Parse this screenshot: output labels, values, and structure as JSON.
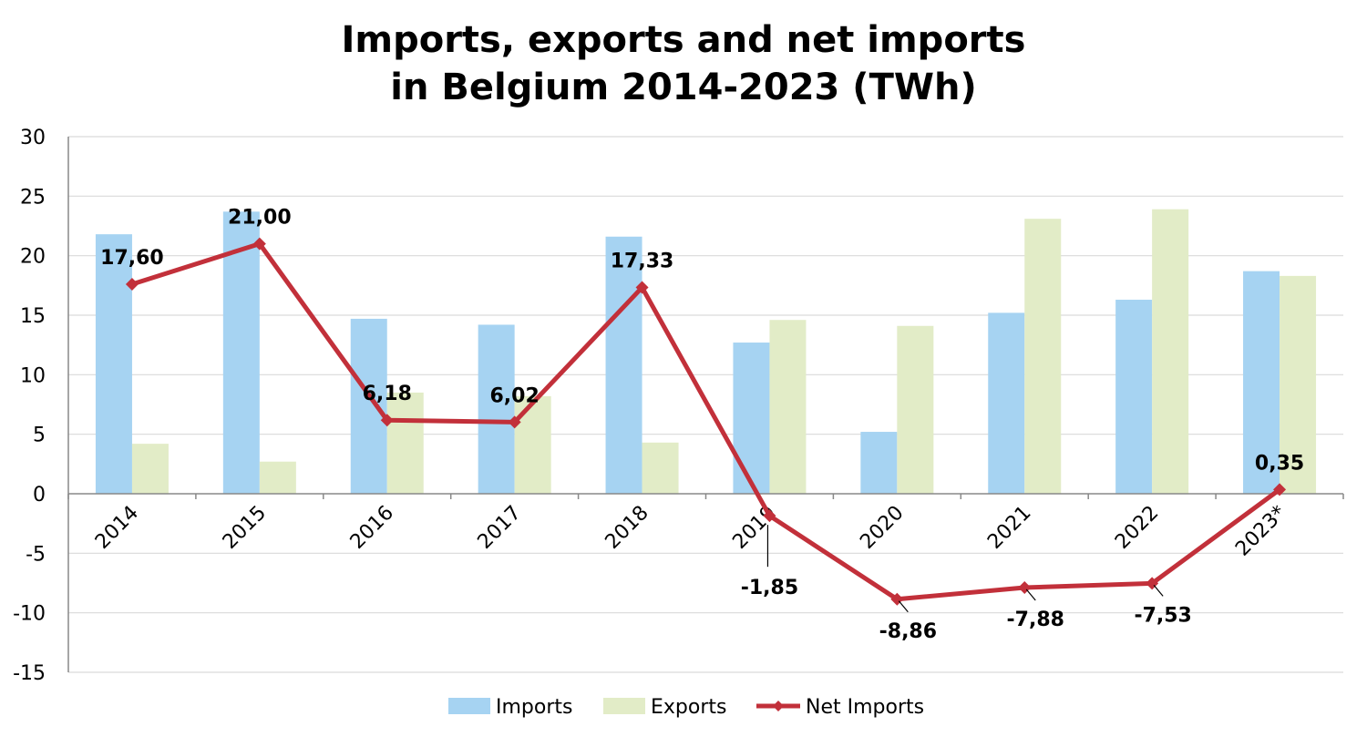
{
  "chart_data": {
    "type": "bar",
    "title_lines": [
      "Imports, exports and net imports",
      "in Belgium 2014-2023 (TWh)"
    ],
    "categories": [
      "2014",
      "2015",
      "2016",
      "2017",
      "2018",
      "2019",
      "2020",
      "2021",
      "2022",
      "2023*"
    ],
    "series": [
      {
        "name": "Imports",
        "kind": "bar",
        "color": "#a6d3f2",
        "values": [
          21.8,
          23.7,
          14.7,
          14.2,
          21.6,
          12.7,
          5.2,
          15.2,
          16.3,
          18.7
        ]
      },
      {
        "name": "Exports",
        "kind": "bar",
        "color": "#e2ecc7",
        "values": [
          4.2,
          2.7,
          8.5,
          8.2,
          4.3,
          14.6,
          14.1,
          23.1,
          23.9,
          18.3
        ]
      },
      {
        "name": "Net Imports",
        "kind": "line",
        "color": "#c2303a",
        "values": [
          17.6,
          21.0,
          6.18,
          6.02,
          17.33,
          -1.85,
          -8.86,
          -7.88,
          -7.53,
          0.35
        ],
        "labels": [
          "17,60",
          "21,00",
          "6,18",
          "6,02",
          "17,33",
          "-1,85",
          "-8,86",
          "-7,88",
          "-7,53",
          "0,35"
        ]
      }
    ],
    "y_ticks": [
      30,
      25,
      20,
      15,
      10,
      5,
      0,
      -5,
      -10,
      -15
    ],
    "ylim": [
      -15,
      30
    ],
    "grid": true,
    "legend_position": "bottom-center",
    "gridline_color": "#d9d9d9",
    "axis_color": "#888888"
  }
}
